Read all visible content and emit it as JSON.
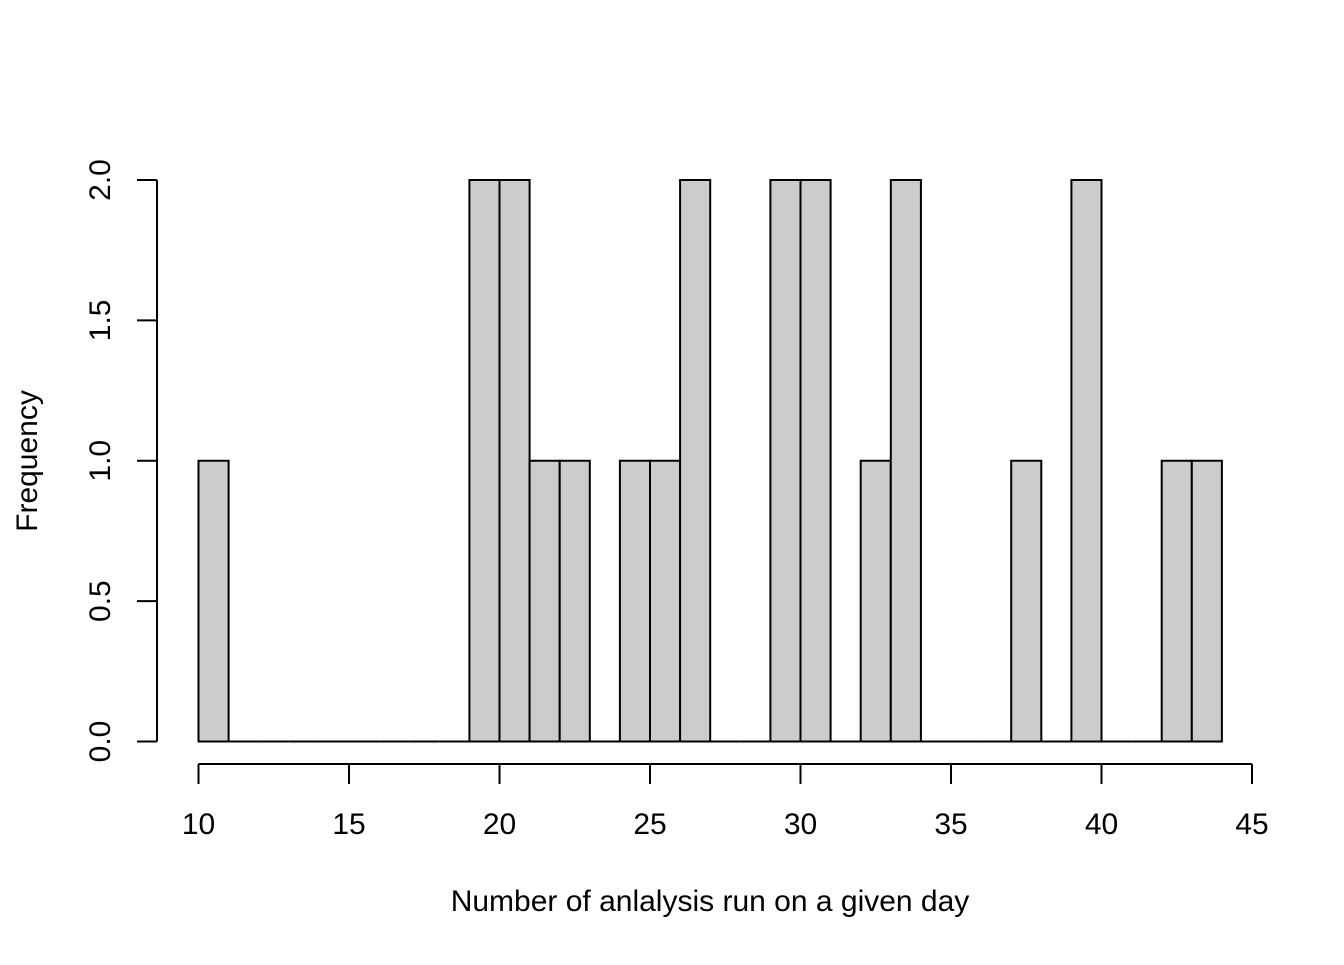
{
  "chart_data": {
    "type": "bar",
    "title": "",
    "xlabel": "Number of anlalysis run on a given day",
    "ylabel": "Frequency",
    "bin_width": 1,
    "bin_starts": [
      10,
      11,
      12,
      13,
      14,
      15,
      16,
      17,
      18,
      19,
      20,
      21,
      22,
      23,
      24,
      25,
      26,
      27,
      28,
      29,
      30,
      31,
      32,
      33,
      34,
      35,
      36,
      37,
      38,
      39,
      40,
      41,
      42,
      43
    ],
    "values": [
      1,
      0,
      0,
      0,
      0,
      0,
      0,
      0,
      0,
      2,
      2,
      1,
      1,
      0,
      1,
      1,
      2,
      0,
      0,
      2,
      2,
      0,
      1,
      2,
      0,
      0,
      0,
      1,
      0,
      2,
      0,
      0,
      1,
      1
    ],
    "xlim": [
      10,
      45
    ],
    "ylim": [
      0,
      2
    ],
    "x_ticks": [
      "10",
      "15",
      "20",
      "25",
      "30",
      "35",
      "40",
      "45"
    ],
    "y_ticks": [
      "0.0",
      "0.5",
      "1.0",
      "1.5",
      "2.0"
    ],
    "grid": false,
    "colors": {
      "bar_fill": "#cccccc",
      "bar_stroke": "#000000",
      "axis": "#000000"
    }
  }
}
